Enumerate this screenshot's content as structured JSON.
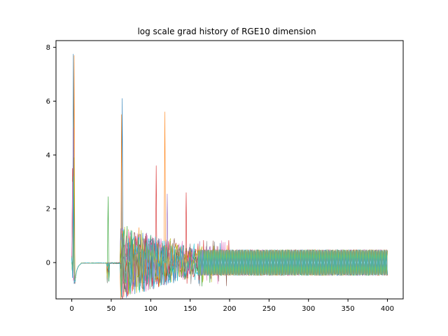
{
  "chart_data": {
    "type": "line",
    "title": "log scale grad history of RGE10 dimension",
    "xlabel": "",
    "ylabel": "",
    "xlim": [
      -20,
      420
    ],
    "ylim": [
      -1.35,
      8.25
    ],
    "xticks": [
      0,
      50,
      100,
      150,
      200,
      250,
      300,
      350,
      400
    ],
    "yticks": [
      0,
      2,
      4,
      6,
      8
    ],
    "xtick_labels": [
      "0",
      "50",
      "100",
      "150",
      "200",
      "250",
      "300",
      "350",
      "400"
    ],
    "ytick_labels": [
      "0",
      "2",
      "4",
      "6",
      "8"
    ],
    "grid": false,
    "legend": "none",
    "n_points": 401,
    "series_colors": [
      "#1f77b4",
      "#ff7f0e",
      "#2ca02c",
      "#d62728",
      "#9467bd",
      "#8c564b",
      "#e377c2",
      "#7f7f7f",
      "#bcbd22",
      "#17becf"
    ],
    "series": [
      {
        "peaks": [
          [
            2,
            7.75
          ],
          [
            64,
            6.1
          ],
          [
            90,
            1.1
          ]
        ]
      },
      {
        "peaks": [
          [
            3,
            7.7
          ],
          [
            63,
            5.5
          ],
          [
            118,
            5.6
          ],
          [
            85,
            1.3
          ]
        ]
      },
      {
        "peaks": [
          [
            2,
            4.3
          ],
          [
            46,
            2.45
          ],
          [
            70,
            1.35
          ],
          [
            100,
            1.0
          ]
        ]
      },
      {
        "peaks": [
          [
            1,
            3.5
          ],
          [
            107,
            3.6
          ],
          [
            145,
            2.6
          ],
          [
            160,
            0.7
          ]
        ]
      },
      {
        "peaks": [
          [
            2,
            5.0
          ],
          [
            121,
            2.55
          ],
          [
            95,
            1.1
          ],
          [
            175,
            0.6
          ]
        ]
      },
      {
        "peaks": [
          [
            3,
            2.8
          ],
          [
            75,
            1.1
          ],
          [
            130,
            0.9
          ],
          [
            185,
            0.6
          ]
        ]
      },
      {
        "peaks": [
          [
            1,
            3.0
          ],
          [
            80,
            1.0
          ],
          [
            140,
            0.8
          ],
          [
            170,
            0.6
          ]
        ]
      },
      {
        "peaks": [
          [
            2,
            2.2
          ],
          [
            66,
            1.2
          ],
          [
            110,
            0.9
          ],
          [
            150,
            0.7
          ]
        ]
      },
      {
        "peaks": [
          [
            3,
            3.9
          ],
          [
            88,
            1.2
          ],
          [
            125,
            0.9
          ],
          [
            165,
            0.6
          ]
        ]
      },
      {
        "peaks": [
          [
            2,
            3.2
          ],
          [
            72,
            0.9
          ],
          [
            115,
            0.8
          ],
          [
            155,
            0.7
          ]
        ]
      }
    ],
    "baseline_dip": -0.7,
    "steady_amplitude": 0.48,
    "burst_start": 62,
    "steady_start": 160
  }
}
